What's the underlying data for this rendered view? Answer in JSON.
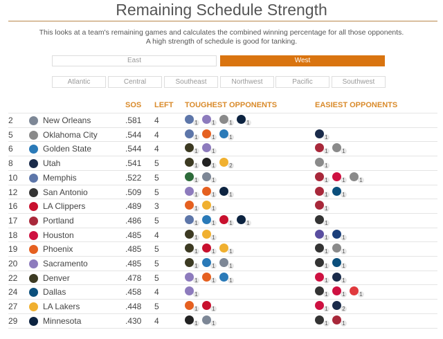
{
  "title": "Remaining Schedule Strength",
  "description": [
    "This looks at a team's remaining games and calculates the combined winning percentage for all those opponents.",
    "A high strength of schedule is good for tanking."
  ],
  "conferences": [
    {
      "label": "East",
      "active": false
    },
    {
      "label": "West",
      "active": true
    }
  ],
  "divisions": [
    "Atlantic",
    "Central",
    "Southeast",
    "Northwest",
    "Pacific",
    "Southwest"
  ],
  "headers": {
    "sos": "SOS",
    "left": "LEFT",
    "tough": "TOUGHEST OPPONENTS",
    "easy": "EASIEST OPPONENTS"
  },
  "accent": "#d97410",
  "team_colors": {
    "NOP": "#7d8796",
    "OKC": "#8a8a8a",
    "GSW": "#2a7ab8",
    "UTA": "#1a2b4a",
    "MEM": "#5d76a9",
    "SAS": "#333333",
    "LAC": "#c8102e",
    "POR": "#a8283a",
    "HOU": "#ce1141",
    "PHX": "#e56020",
    "SAC": "#8d7bbd",
    "DEN": "#3c3a22",
    "DAL": "#0b4f7c",
    "LAL": "#f0b030",
    "MIN": "#0c2340",
    "MIL": "#2d6b3a",
    "BKN": "#222222",
    "CHI": "#ce1141",
    "CHA": "#5a4ea0",
    "WAS": "#1b3f7a",
    "ATL": "#e03a3e"
  },
  "rows": [
    {
      "rank": "2",
      "team": "NOP",
      "name": "New Orleans",
      "sos": ".581",
      "left": "4",
      "tough": [
        [
          "MEM",
          "1"
        ],
        [
          "SAC",
          "1"
        ],
        [
          "OKC",
          "1"
        ],
        [
          "MIN",
          "1"
        ]
      ],
      "easy": []
    },
    {
      "rank": "5",
      "team": "OKC",
      "name": "Oklahoma City",
      "sos": ".544",
      "left": "4",
      "tough": [
        [
          "MEM",
          "1"
        ],
        [
          "PHX",
          "1"
        ],
        [
          "GSW",
          "1"
        ]
      ],
      "easy": [
        [
          "UTA",
          "1"
        ]
      ]
    },
    {
      "rank": "6",
      "team": "GSW",
      "name": "Golden State",
      "sos": ".544",
      "left": "4",
      "tough": [
        [
          "DEN",
          "1"
        ],
        [
          "SAC",
          "1"
        ]
      ],
      "easy": [
        [
          "POR",
          "1"
        ],
        [
          "OKC",
          "1"
        ]
      ]
    },
    {
      "rank": "8",
      "team": "UTA",
      "name": "Utah",
      "sos": ".541",
      "left": "5",
      "tough": [
        [
          "DEN",
          "1"
        ],
        [
          "BKN",
          "1"
        ],
        [
          "LAL",
          "2"
        ]
      ],
      "easy": [
        [
          "OKC",
          "1"
        ]
      ]
    },
    {
      "rank": "10",
      "team": "MEM",
      "name": "Memphis",
      "sos": ".522",
      "left": "5",
      "tough": [
        [
          "MIL",
          "1"
        ],
        [
          "NOP",
          "1"
        ]
      ],
      "easy": [
        [
          "POR",
          "1"
        ],
        [
          "CHI",
          "1"
        ],
        [
          "OKC",
          "1"
        ]
      ]
    },
    {
      "rank": "12",
      "team": "SAS",
      "name": "San Antonio",
      "sos": ".509",
      "left": "5",
      "tough": [
        [
          "SAC",
          "1"
        ],
        [
          "PHX",
          "1"
        ],
        [
          "MIN",
          "1"
        ]
      ],
      "easy": [
        [
          "POR",
          "1"
        ],
        [
          "DAL",
          "1"
        ]
      ]
    },
    {
      "rank": "16",
      "team": "LAC",
      "name": "LA Clippers",
      "sos": ".489",
      "left": "3",
      "tough": [
        [
          "PHX",
          "1"
        ],
        [
          "LAL",
          "1"
        ]
      ],
      "easy": [
        [
          "POR",
          "1"
        ]
      ]
    },
    {
      "rank": "17",
      "team": "POR",
      "name": "Portland",
      "sos": ".486",
      "left": "5",
      "tough": [
        [
          "MEM",
          "1"
        ],
        [
          "GSW",
          "1"
        ],
        [
          "LAC",
          "1"
        ],
        [
          "MIN",
          "1"
        ]
      ],
      "easy": [
        [
          "SAS",
          "1"
        ]
      ]
    },
    {
      "rank": "18",
      "team": "HOU",
      "name": "Houston",
      "sos": ".485",
      "left": "4",
      "tough": [
        [
          "DEN",
          "1"
        ],
        [
          "LAL",
          "1"
        ]
      ],
      "easy": [
        [
          "CHA",
          "1"
        ],
        [
          "WAS",
          "1"
        ]
      ]
    },
    {
      "rank": "19",
      "team": "PHX",
      "name": "Phoenix",
      "sos": ".485",
      "left": "5",
      "tough": [
        [
          "DEN",
          "1"
        ],
        [
          "LAC",
          "1"
        ],
        [
          "LAL",
          "1"
        ]
      ],
      "easy": [
        [
          "SAS",
          "1"
        ],
        [
          "OKC",
          "1"
        ]
      ]
    },
    {
      "rank": "20",
      "team": "SAC",
      "name": "Sacramento",
      "sos": ".485",
      "left": "5",
      "tough": [
        [
          "DEN",
          "1"
        ],
        [
          "GSW",
          "1"
        ],
        [
          "NOP",
          "1"
        ]
      ],
      "easy": [
        [
          "SAS",
          "1"
        ],
        [
          "DAL",
          "1"
        ]
      ]
    },
    {
      "rank": "22",
      "team": "DEN",
      "name": "Denver",
      "sos": ".478",
      "left": "5",
      "tough": [
        [
          "SAC",
          "1"
        ],
        [
          "PHX",
          "1"
        ],
        [
          "GSW",
          "1"
        ]
      ],
      "easy": [
        [
          "HOU",
          "1"
        ],
        [
          "UTA",
          "1"
        ]
      ]
    },
    {
      "rank": "24",
      "team": "DAL",
      "name": "Dallas",
      "sos": ".458",
      "left": "4",
      "tough": [
        [
          "SAC",
          "1"
        ]
      ],
      "easy": [
        [
          "SAS",
          "1"
        ],
        [
          "CHI",
          "1"
        ],
        [
          "ATL",
          "1"
        ]
      ]
    },
    {
      "rank": "27",
      "team": "LAL",
      "name": "LA Lakers",
      "sos": ".448",
      "left": "5",
      "tough": [
        [
          "PHX",
          "1"
        ],
        [
          "LAC",
          "1"
        ]
      ],
      "easy": [
        [
          "HOU",
          "1"
        ],
        [
          "UTA",
          "2"
        ]
      ]
    },
    {
      "rank": "29",
      "team": "MIN",
      "name": "Minnesota",
      "sos": ".430",
      "left": "4",
      "tough": [
        [
          "BKN",
          "1"
        ],
        [
          "NOP",
          "1"
        ]
      ],
      "easy": [
        [
          "SAS",
          "1"
        ],
        [
          "POR",
          "1"
        ]
      ]
    }
  ]
}
